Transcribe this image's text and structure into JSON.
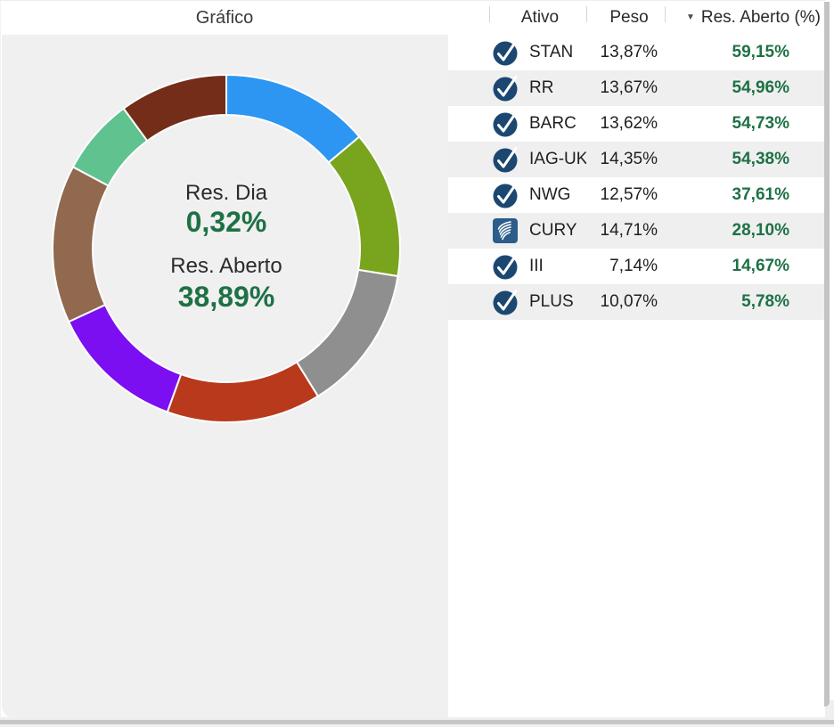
{
  "title": "Gráfico",
  "chart": {
    "center": {
      "label_day": "Res. Dia",
      "value_day": "0,32%",
      "label_open": "Res. Aberto",
      "value_open": "38,89%"
    }
  },
  "chart_data": {
    "type": "pie",
    "subtype": "donut",
    "title": "Gráfico",
    "categories": [
      "STAN",
      "RR",
      "BARC",
      "IAG-UK",
      "NWG",
      "CURY",
      "III",
      "PLUS"
    ],
    "values": [
      13.87,
      13.67,
      13.62,
      14.35,
      12.57,
      14.71,
      7.14,
      10.07
    ],
    "colors": [
      "#2D96F2",
      "#79A41D",
      "#8F8F8F",
      "#B8391B",
      "#7C0EF2",
      "#90694E",
      "#5FC28F",
      "#732D18"
    ],
    "start_angle_deg": 0,
    "direction": "clockwise",
    "center_labels": [
      "Res. Dia",
      "0,32%",
      "Res. Aberto",
      "38,89%"
    ]
  },
  "table": {
    "columns": [
      "Ativo",
      "Peso",
      "Res. Aberto (%)"
    ],
    "sorted_by": "Res. Aberto (%)",
    "sort_direction": "desc",
    "rows": [
      {
        "icon": "verified-check",
        "ativo": "STAN",
        "peso": "13,87%",
        "res": "59,15%"
      },
      {
        "icon": "verified-check",
        "ativo": "RR",
        "peso": "13,67%",
        "res": "54,96%"
      },
      {
        "icon": "verified-check",
        "ativo": "BARC",
        "peso": "13,62%",
        "res": "54,73%"
      },
      {
        "icon": "verified-check",
        "ativo": "IAG-UK",
        "peso": "14,35%",
        "res": "54,38%"
      },
      {
        "icon": "verified-check",
        "ativo": "NWG",
        "peso": "12,57%",
        "res": "37,61%"
      },
      {
        "icon": "cury-logo",
        "ativo": "CURY",
        "peso": "14,71%",
        "res": "28,10%"
      },
      {
        "icon": "verified-check",
        "ativo": "III",
        "peso": "7,14%",
        "res": "14,67%"
      },
      {
        "icon": "verified-check",
        "ativo": "PLUS",
        "peso": "10,07%",
        "res": "5,78%"
      }
    ],
    "sort_icon": "▼"
  },
  "colors": {
    "value_green": "#1E7145",
    "row_stripe": "#EFEFEF",
    "chart_panel_bg": "#F0F0F0",
    "icon_navy": "#1B4771",
    "cury_icon_blue": "#2B5C8A",
    "window_edge_gray": "#C3C3C3"
  }
}
